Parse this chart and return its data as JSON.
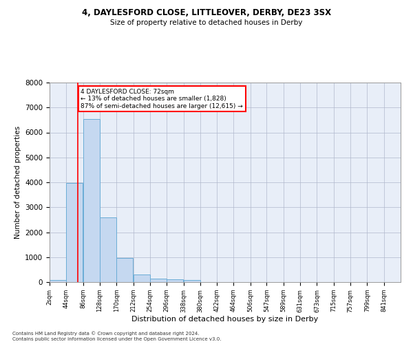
{
  "title1": "4, DAYLESFORD CLOSE, LITTLEOVER, DERBY, DE23 3SX",
  "title2": "Size of property relative to detached houses in Derby",
  "xlabel": "Distribution of detached houses by size in Derby",
  "ylabel": "Number of detached properties",
  "footnote1": "Contains HM Land Registry data © Crown copyright and database right 2024.",
  "footnote2": "Contains public sector information licensed under the Open Government Licence v3.0.",
  "annotation_line1": "4 DAYLESFORD CLOSE: 72sqm",
  "annotation_line2": "← 13% of detached houses are smaller (1,828)",
  "annotation_line3": "87% of semi-detached houses are larger (12,615) →",
  "property_size": 72,
  "bar_color": "#c5d8f0",
  "bar_edge_color": "#6aacd6",
  "vline_color": "red",
  "background_color": "#e8eef8",
  "grid_color": "#b0b8cc",
  "categories": [
    "2sqm",
    "44sqm",
    "86sqm",
    "128sqm",
    "170sqm",
    "212sqm",
    "254sqm",
    "296sqm",
    "338sqm",
    "380sqm",
    "422sqm",
    "464sqm",
    "506sqm",
    "547sqm",
    "589sqm",
    "631sqm",
    "673sqm",
    "715sqm",
    "757sqm",
    "799sqm",
    "841sqm"
  ],
  "bar_lefts": [
    2,
    44,
    86,
    128,
    170,
    212,
    254,
    296,
    338,
    380,
    422,
    464,
    506,
    547,
    589,
    631,
    673,
    715,
    757,
    799,
    841
  ],
  "bar_heights": [
    70,
    3980,
    6550,
    2600,
    960,
    310,
    130,
    110,
    80,
    0,
    0,
    0,
    0,
    0,
    0,
    0,
    0,
    0,
    0,
    0,
    0
  ],
  "bin_width": 42,
  "ylim": [
    0,
    8000
  ],
  "yticks": [
    0,
    1000,
    2000,
    3000,
    4000,
    5000,
    6000,
    7000,
    8000
  ],
  "xlim_left": 2,
  "xlim_right": 883
}
